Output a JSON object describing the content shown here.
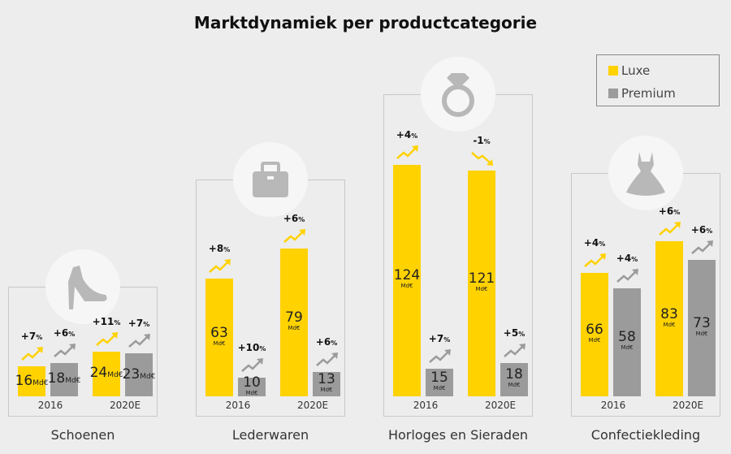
{
  "chart_data": {
    "type": "bar",
    "title": "Marktdynamiek per productcategorie",
    "unit": "Md€",
    "legend": {
      "placement": "top-right",
      "entries": [
        {
          "name": "Luxe",
          "color": "#ffd200"
        },
        {
          "name": "Premium",
          "color": "#9b9b9b"
        }
      ]
    },
    "groups": [
      {
        "category": "Schoenen",
        "icon": "high-heel-shoe-icon",
        "years": [
          {
            "year": "2016",
            "luxe": {
              "value": 16,
              "growth": "+7"
            },
            "premium": {
              "value": 18,
              "growth": "+6"
            }
          },
          {
            "year": "2020E",
            "luxe": {
              "value": 24,
              "growth": "+11"
            },
            "premium": {
              "value": 23,
              "growth": "+7"
            }
          }
        ]
      },
      {
        "category": "Lederwaren",
        "icon": "handbag-icon",
        "years": [
          {
            "year": "2016",
            "luxe": {
              "value": 63,
              "growth": "+8"
            },
            "premium": {
              "value": 10,
              "growth": "+10"
            }
          },
          {
            "year": "2020E",
            "luxe": {
              "value": 79,
              "growth": "+6"
            },
            "premium": {
              "value": 13,
              "growth": "+6"
            }
          }
        ]
      },
      {
        "category": "Horloges en Sieraden",
        "icon": "diamond-ring-icon",
        "years": [
          {
            "year": "2016",
            "luxe": {
              "value": 124,
              "growth": "+4"
            },
            "premium": {
              "value": 15,
              "growth": "+7"
            }
          },
          {
            "year": "2020E",
            "luxe": {
              "value": 121,
              "growth": "-1"
            },
            "premium": {
              "value": 18,
              "growth": "+5"
            }
          }
        ]
      },
      {
        "category": "Confectiekleding",
        "icon": "dress-icon",
        "years": [
          {
            "year": "2016",
            "luxe": {
              "value": 66,
              "growth": "+4"
            },
            "premium": {
              "value": 58,
              "growth": "+4"
            }
          },
          {
            "year": "2020E",
            "luxe": {
              "value": 83,
              "growth": "+6"
            },
            "premium": {
              "value": 73,
              "growth": "+6"
            }
          }
        ]
      }
    ]
  }
}
